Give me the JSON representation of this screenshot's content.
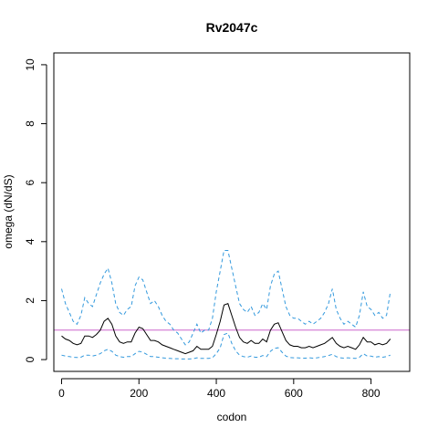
{
  "chart_data": {
    "type": "line",
    "title": "Rv2047c",
    "xlabel": "codon",
    "ylabel": "omega (dN/dS)",
    "xlim": [
      -20,
      900
    ],
    "ylim": [
      -0.4,
      10.4
    ],
    "xticks": [
      0,
      200,
      400,
      600,
      800
    ],
    "yticks": [
      0,
      2,
      4,
      6,
      8,
      10
    ],
    "reference_line": {
      "y": 1,
      "color": "#cc66cc"
    },
    "series": [
      {
        "role": "upper",
        "color": "#3399dd",
        "style": "dashed",
        "x": [
          0,
          10,
          20,
          30,
          40,
          50,
          60,
          70,
          80,
          90,
          100,
          110,
          120,
          130,
          140,
          150,
          160,
          170,
          180,
          190,
          200,
          210,
          220,
          230,
          240,
          250,
          260,
          270,
          280,
          290,
          300,
          310,
          320,
          330,
          340,
          350,
          360,
          370,
          380,
          390,
          400,
          410,
          420,
          430,
          440,
          450,
          460,
          470,
          480,
          490,
          500,
          510,
          520,
          530,
          540,
          550,
          560,
          570,
          580,
          590,
          600,
          610,
          620,
          630,
          640,
          650,
          660,
          670,
          680,
          690,
          700,
          710,
          720,
          730,
          740,
          750,
          760,
          770,
          780,
          790,
          800,
          810,
          820,
          830,
          840,
          850
        ],
        "y": [
          2.4,
          1.9,
          1.6,
          1.3,
          1.2,
          1.5,
          2.1,
          1.9,
          1.8,
          2.2,
          2.6,
          2.9,
          3.1,
          2.6,
          1.9,
          1.6,
          1.5,
          1.7,
          1.8,
          2.5,
          2.8,
          2.7,
          2.3,
          1.9,
          2.0,
          1.8,
          1.5,
          1.3,
          1.2,
          1.0,
          0.9,
          0.7,
          0.5,
          0.6,
          0.9,
          1.2,
          0.9,
          1.0,
          1.0,
          1.4,
          2.3,
          3.0,
          3.7,
          3.7,
          3.1,
          2.5,
          1.9,
          1.7,
          1.6,
          1.8,
          1.5,
          1.6,
          1.9,
          1.7,
          2.5,
          2.9,
          3.0,
          2.4,
          1.8,
          1.5,
          1.4,
          1.4,
          1.3,
          1.2,
          1.3,
          1.2,
          1.3,
          1.4,
          1.6,
          1.9,
          2.4,
          1.7,
          1.4,
          1.2,
          1.3,
          1.2,
          1.1,
          1.5,
          2.3,
          1.8,
          1.7,
          1.5,
          1.6,
          1.4,
          1.5,
          2.3
        ]
      },
      {
        "role": "mean",
        "color": "#000000",
        "style": "solid",
        "x": [
          0,
          10,
          20,
          30,
          40,
          50,
          60,
          70,
          80,
          90,
          100,
          110,
          120,
          130,
          140,
          150,
          160,
          170,
          180,
          190,
          200,
          210,
          220,
          230,
          240,
          250,
          260,
          270,
          280,
          290,
          300,
          310,
          320,
          330,
          340,
          350,
          360,
          370,
          380,
          390,
          400,
          410,
          420,
          430,
          440,
          450,
          460,
          470,
          480,
          490,
          500,
          510,
          520,
          530,
          540,
          550,
          560,
          570,
          580,
          590,
          600,
          610,
          620,
          630,
          640,
          650,
          660,
          670,
          680,
          690,
          700,
          710,
          720,
          730,
          740,
          750,
          760,
          770,
          780,
          790,
          800,
          810,
          820,
          830,
          840,
          850
        ],
        "y": [
          0.8,
          0.7,
          0.65,
          0.55,
          0.5,
          0.55,
          0.8,
          0.8,
          0.75,
          0.85,
          1.0,
          1.3,
          1.4,
          1.2,
          0.8,
          0.6,
          0.55,
          0.6,
          0.6,
          0.9,
          1.1,
          1.05,
          0.85,
          0.65,
          0.65,
          0.6,
          0.5,
          0.45,
          0.4,
          0.35,
          0.3,
          0.25,
          0.2,
          0.25,
          0.3,
          0.45,
          0.35,
          0.35,
          0.35,
          0.45,
          0.85,
          1.3,
          1.85,
          1.9,
          1.5,
          1.1,
          0.75,
          0.6,
          0.55,
          0.65,
          0.55,
          0.55,
          0.7,
          0.6,
          1.0,
          1.2,
          1.25,
          0.95,
          0.65,
          0.5,
          0.45,
          0.45,
          0.4,
          0.4,
          0.45,
          0.4,
          0.45,
          0.5,
          0.55,
          0.65,
          0.75,
          0.55,
          0.45,
          0.4,
          0.45,
          0.4,
          0.35,
          0.5,
          0.75,
          0.6,
          0.6,
          0.5,
          0.55,
          0.5,
          0.55,
          0.7
        ]
      },
      {
        "role": "lower",
        "color": "#3399dd",
        "style": "dashed",
        "x": [
          0,
          10,
          20,
          30,
          40,
          50,
          60,
          70,
          80,
          90,
          100,
          110,
          120,
          130,
          140,
          150,
          160,
          170,
          180,
          190,
          200,
          210,
          220,
          230,
          240,
          250,
          260,
          270,
          280,
          290,
          300,
          310,
          320,
          330,
          340,
          350,
          360,
          370,
          380,
          390,
          400,
          410,
          420,
          430,
          440,
          450,
          460,
          470,
          480,
          490,
          500,
          510,
          520,
          530,
          540,
          550,
          560,
          570,
          580,
          590,
          600,
          610,
          620,
          630,
          640,
          650,
          660,
          670,
          680,
          690,
          700,
          710,
          720,
          730,
          740,
          750,
          760,
          770,
          780,
          790,
          800,
          810,
          820,
          830,
          840,
          850
        ],
        "y": [
          0.15,
          0.12,
          0.1,
          0.08,
          0.07,
          0.08,
          0.15,
          0.15,
          0.12,
          0.15,
          0.2,
          0.3,
          0.35,
          0.28,
          0.15,
          0.1,
          0.08,
          0.1,
          0.1,
          0.2,
          0.28,
          0.25,
          0.18,
          0.1,
          0.1,
          0.08,
          0.06,
          0.05,
          0.04,
          0.03,
          0.03,
          0.02,
          0.02,
          0.02,
          0.03,
          0.06,
          0.04,
          0.04,
          0.04,
          0.06,
          0.2,
          0.4,
          0.85,
          0.9,
          0.55,
          0.3,
          0.15,
          0.1,
          0.08,
          0.12,
          0.08,
          0.08,
          0.14,
          0.1,
          0.28,
          0.38,
          0.4,
          0.25,
          0.12,
          0.07,
          0.06,
          0.06,
          0.05,
          0.05,
          0.06,
          0.05,
          0.06,
          0.08,
          0.1,
          0.14,
          0.18,
          0.1,
          0.06,
          0.05,
          0.06,
          0.05,
          0.04,
          0.08,
          0.2,
          0.12,
          0.12,
          0.08,
          0.1,
          0.08,
          0.1,
          0.15
        ]
      }
    ]
  }
}
